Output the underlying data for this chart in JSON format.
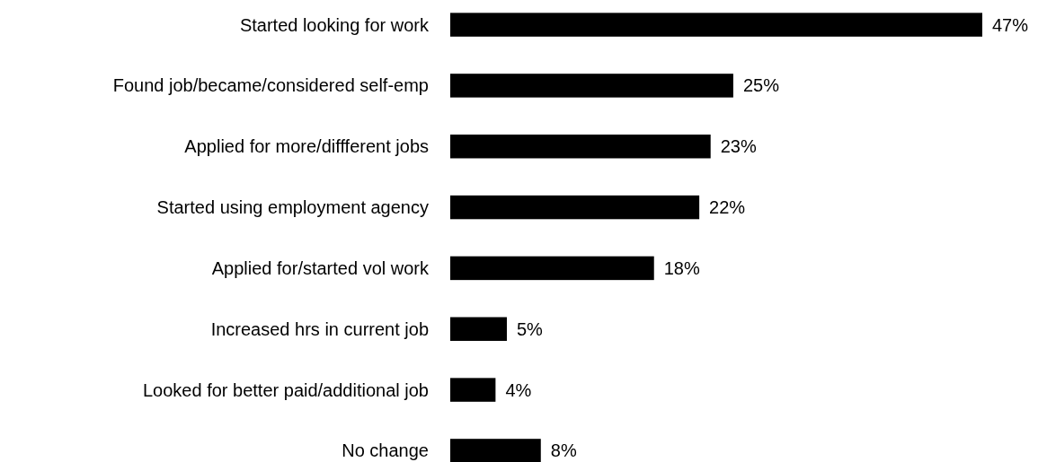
{
  "chart_data": {
    "type": "bar",
    "orientation": "horizontal",
    "categories": [
      "Started looking for work",
      "Found job/became/considered self-emp",
      "Applied for more/diffferent jobs",
      "Started using employment agency",
      "Applied for/started vol work",
      "Increased hrs in current job",
      "Looked for better paid/additional job",
      "No change"
    ],
    "values": [
      47,
      25,
      23,
      22,
      18,
      5,
      4,
      8
    ],
    "value_labels": [
      "47%",
      "25%",
      "23%",
      "22%",
      "18%",
      "5%",
      "4%",
      "8%"
    ],
    "color": "#000000"
  }
}
